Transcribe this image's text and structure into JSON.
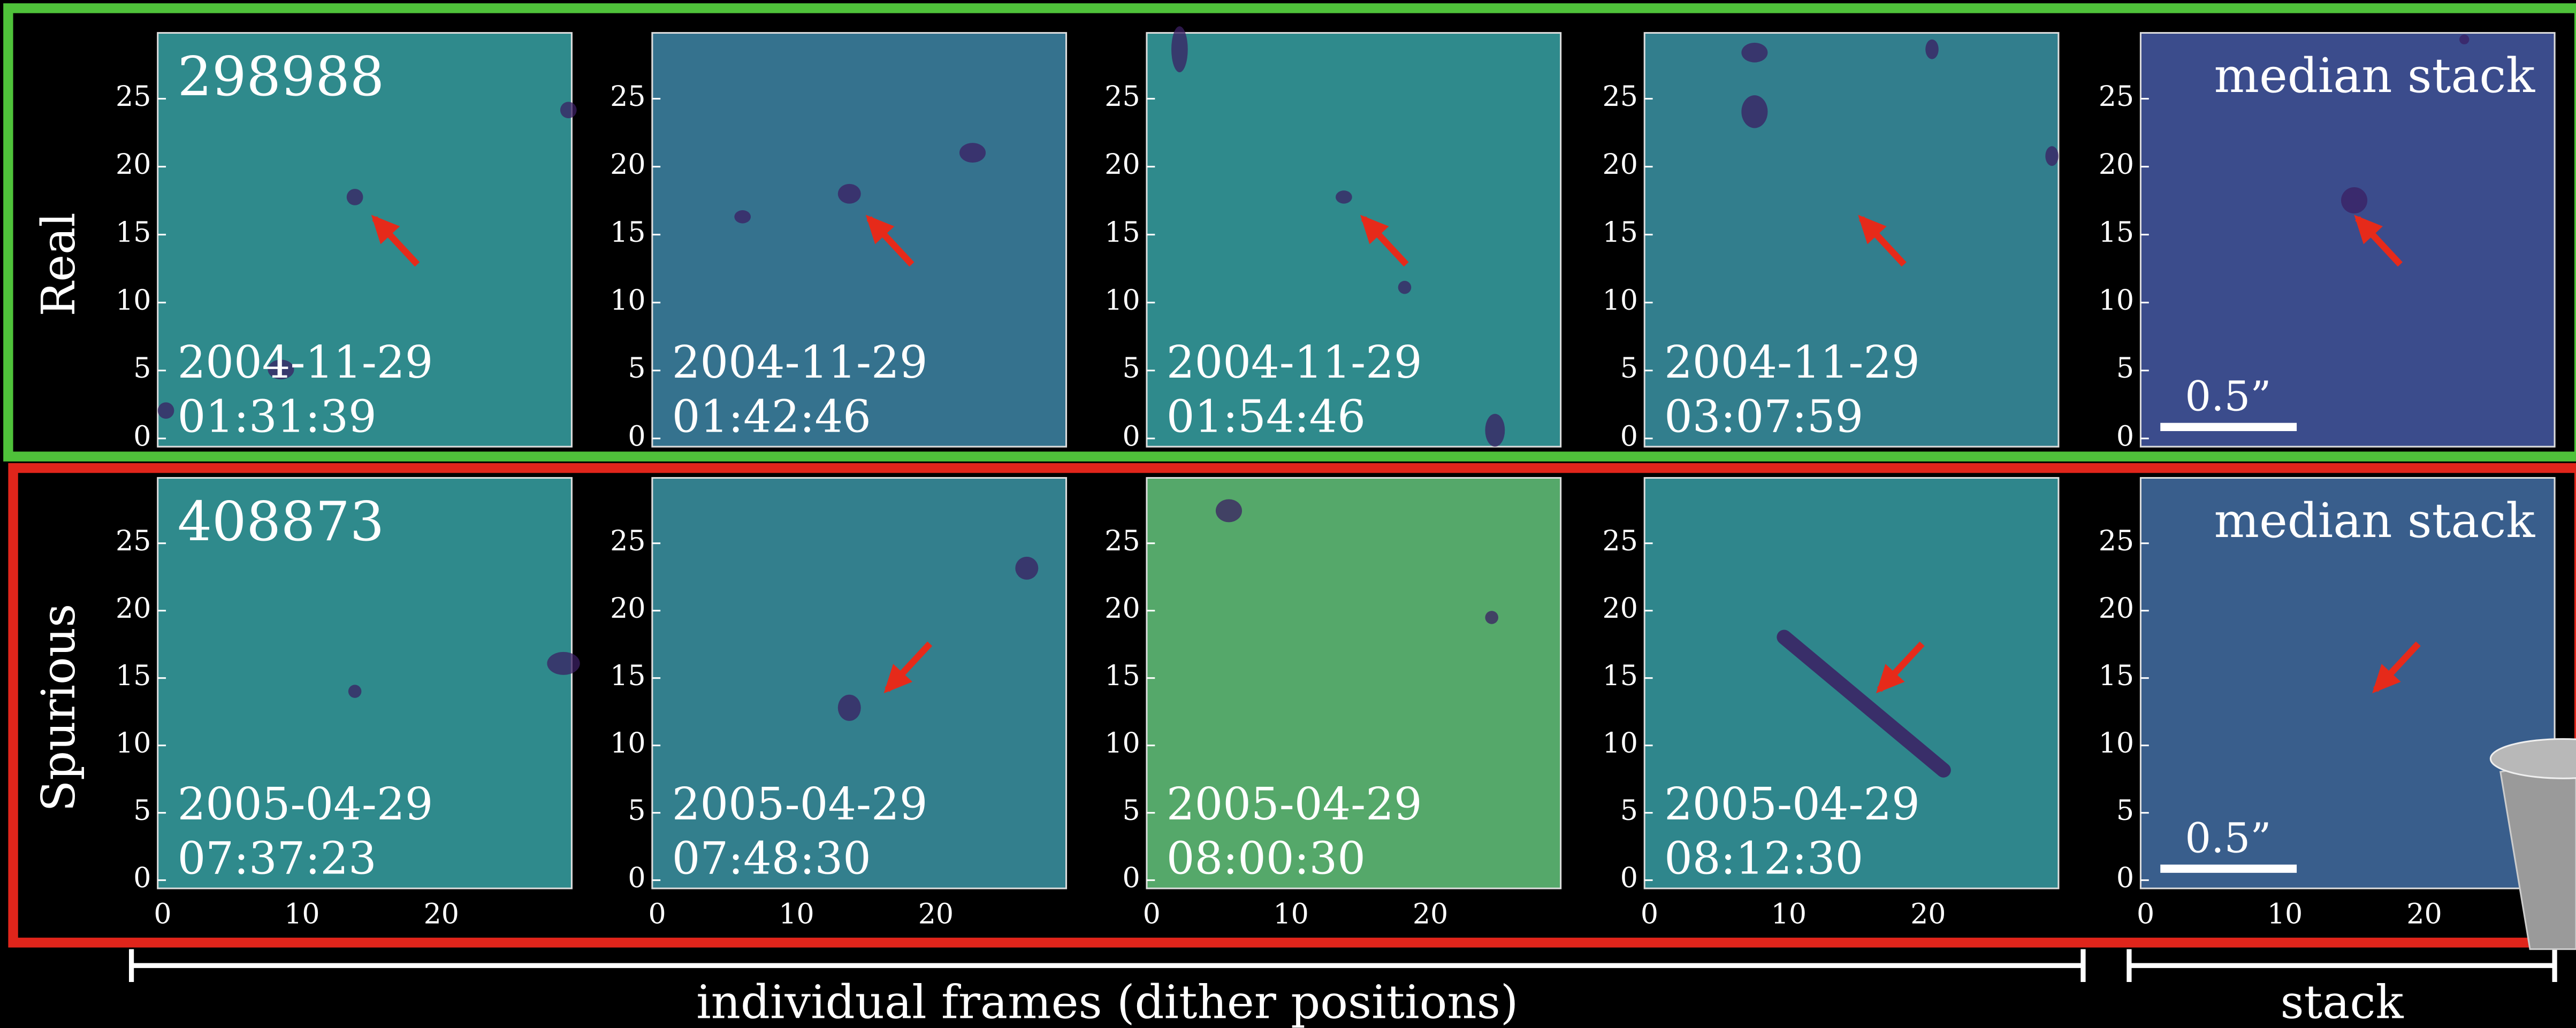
{
  "rows": [
    {
      "label": "Real",
      "id": "298988",
      "stack_label": "median stack",
      "scale_bar": "0.5”",
      "frames": [
        {
          "date": "2004-11-29",
          "time": "01:31:39"
        },
        {
          "date": "2004-11-29",
          "time": "01:42:46"
        },
        {
          "date": "2004-11-29",
          "time": "01:54:46"
        },
        {
          "date": "2004-11-29",
          "time": "03:07:59"
        }
      ]
    },
    {
      "label": "Spurious",
      "id": "408873",
      "stack_label": "median stack",
      "scale_bar": "0.5”",
      "frames": [
        {
          "date": "2005-04-29",
          "time": "07:37:23"
        },
        {
          "date": "2005-04-29",
          "time": "07:48:30"
        },
        {
          "date": "2005-04-29",
          "time": "08:00:30"
        },
        {
          "date": "2005-04-29",
          "time": "08:12:30"
        }
      ]
    }
  ],
  "yticks": [
    "0",
    "5",
    "10",
    "15",
    "20",
    "25"
  ],
  "xticks": [
    "0",
    "10",
    "20"
  ],
  "brackets": [
    "individual frames (dither positions)",
    "stack"
  ]
}
